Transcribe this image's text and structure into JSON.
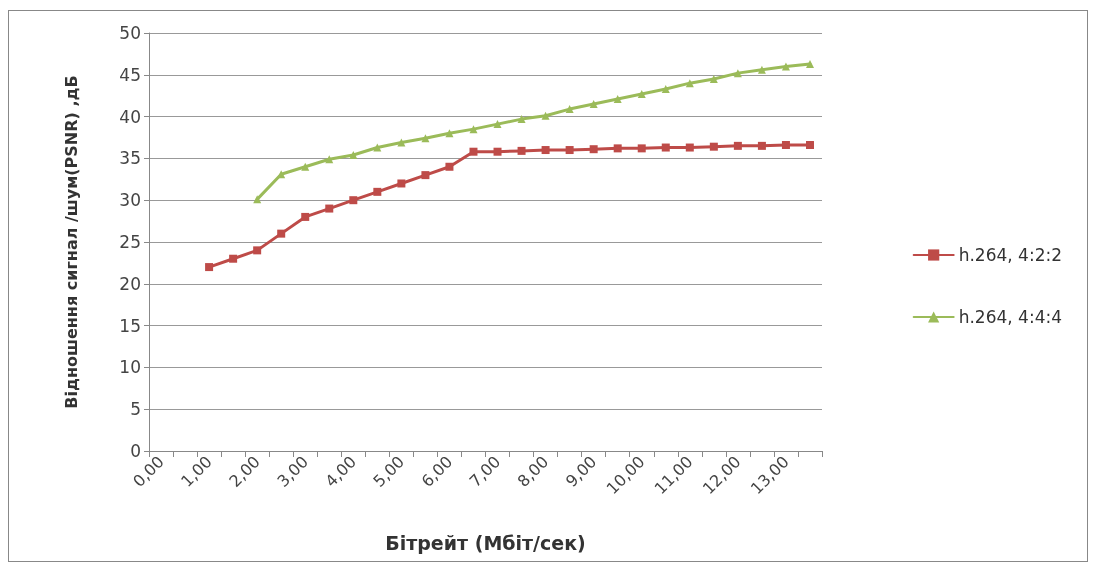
{
  "chart_data": {
    "type": "line",
    "xlabel": "Бітрейт (Мбіт/сек)",
    "ylabel": "Відношення сигнал /шум(PSNR) ,дБ",
    "categories": [
      "0,00",
      null,
      "1,00",
      null,
      "2,00",
      null,
      "3,00",
      null,
      "4,00",
      null,
      "5,00",
      null,
      "6,00",
      null,
      "7,00",
      null,
      "8,00",
      null,
      "9,00",
      null,
      "10,00",
      null,
      "11,00",
      null,
      "12,00",
      null,
      "13,00",
      null
    ],
    "series": [
      {
        "name": "h.264, 4:2:2",
        "color": "#be4b48",
        "marker": "square",
        "values": [
          null,
          null,
          22,
          23,
          24,
          26,
          28,
          29,
          30,
          31,
          32,
          33,
          34,
          35.8,
          35.8,
          35.9,
          36.0,
          36.0,
          36.1,
          36.2,
          36.2,
          36.3,
          36.3,
          36.4,
          36.5,
          36.5,
          36.6,
          36.6
        ]
      },
      {
        "name": "h.264, 4:4:4",
        "color": "#9bbb59",
        "marker": "triangle",
        "values": [
          null,
          null,
          null,
          null,
          30.1,
          33.1,
          34.0,
          34.9,
          35.4,
          36.3,
          36.9,
          37.4,
          38.0,
          38.5,
          39.1,
          39.7,
          40.1,
          40.9,
          41.5,
          42.1,
          42.7,
          43.3,
          44.0,
          44.5,
          45.2,
          45.6,
          46.0,
          46.3
        ]
      }
    ],
    "ylim": [
      0,
      50
    ],
    "yticks": [
      0,
      5,
      10,
      15,
      20,
      25,
      30,
      35,
      40,
      45,
      50
    ],
    "grid": "y",
    "legend": "right",
    "line_style": "solid"
  }
}
